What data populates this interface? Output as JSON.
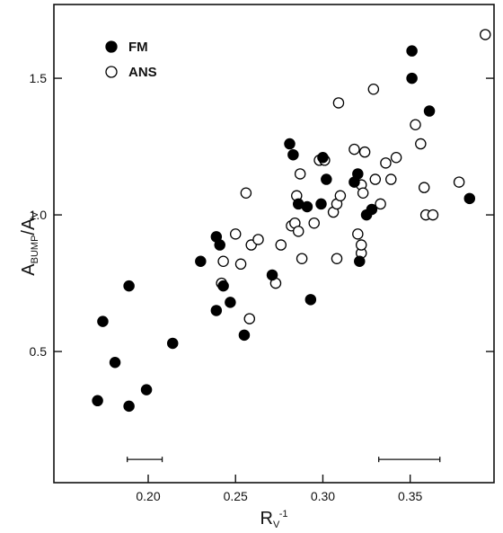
{
  "chart_data": {
    "type": "scatter",
    "title": "",
    "xlabel": {
      "base": "R",
      "sub": "V",
      "sup": "-1"
    },
    "ylabel": {
      "base": "A",
      "sub": "BUMP",
      "rest": "/A",
      "sub2": "V"
    },
    "xlim": [
      0.146,
      0.398
    ],
    "ylim": [
      0.02,
      1.77
    ],
    "xticks": [
      0.2,
      0.25,
      0.3,
      0.35
    ],
    "xtick_labels": [
      "0.20",
      "0.25",
      "0.30",
      "0.35"
    ],
    "yticks": [
      0.5,
      1.0,
      1.5
    ],
    "ytick_labels": [
      "0.5",
      "1.0",
      "1.5"
    ],
    "grid": false,
    "legend_position": "top-left",
    "colors": {
      "filled": "#000000",
      "open_stroke": "#000000",
      "open_fill": "#ffffff"
    },
    "error_bars": [
      {
        "y": 0.105,
        "xmin": 0.188,
        "xmax": 0.208
      },
      {
        "y": 0.105,
        "xmin": 0.332,
        "xmax": 0.367
      }
    ],
    "series": [
      {
        "name": "FM",
        "marker": "filled-circle",
        "points": [
          [
            0.171,
            0.32
          ],
          [
            0.174,
            0.61
          ],
          [
            0.181,
            0.46
          ],
          [
            0.189,
            0.74
          ],
          [
            0.189,
            0.3
          ],
          [
            0.199,
            0.36
          ],
          [
            0.214,
            0.53
          ],
          [
            0.23,
            0.83
          ],
          [
            0.239,
            0.92
          ],
          [
            0.239,
            0.65
          ],
          [
            0.241,
            0.89
          ],
          [
            0.243,
            0.74
          ],
          [
            0.247,
            0.68
          ],
          [
            0.255,
            0.56
          ],
          [
            0.271,
            0.78
          ],
          [
            0.281,
            1.26
          ],
          [
            0.283,
            1.22
          ],
          [
            0.286,
            1.04
          ],
          [
            0.291,
            1.03
          ],
          [
            0.293,
            0.69
          ],
          [
            0.299,
            1.04
          ],
          [
            0.3,
            1.21
          ],
          [
            0.302,
            1.13
          ],
          [
            0.318,
            1.12
          ],
          [
            0.32,
            1.15
          ],
          [
            0.321,
            0.83
          ],
          [
            0.325,
            1.0
          ],
          [
            0.328,
            1.02
          ],
          [
            0.351,
            1.6
          ],
          [
            0.351,
            1.5
          ],
          [
            0.361,
            1.38
          ],
          [
            0.384,
            1.06
          ]
        ]
      },
      {
        "name": "ANS",
        "marker": "open-circle",
        "points": [
          [
            0.242,
            0.75
          ],
          [
            0.243,
            0.83
          ],
          [
            0.25,
            0.93
          ],
          [
            0.253,
            0.82
          ],
          [
            0.256,
            1.08
          ],
          [
            0.258,
            0.62
          ],
          [
            0.259,
            0.89
          ],
          [
            0.263,
            0.91
          ],
          [
            0.273,
            0.75
          ],
          [
            0.276,
            0.89
          ],
          [
            0.282,
            0.96
          ],
          [
            0.284,
            0.97
          ],
          [
            0.285,
            1.07
          ],
          [
            0.286,
            0.94
          ],
          [
            0.287,
            1.15
          ],
          [
            0.288,
            0.84
          ],
          [
            0.295,
            0.97
          ],
          [
            0.298,
            1.2
          ],
          [
            0.301,
            1.2
          ],
          [
            0.306,
            1.01
          ],
          [
            0.308,
            0.84
          ],
          [
            0.308,
            1.04
          ],
          [
            0.309,
            1.41
          ],
          [
            0.31,
            1.07
          ],
          [
            0.318,
            1.24
          ],
          [
            0.32,
            0.93
          ],
          [
            0.322,
            1.11
          ],
          [
            0.322,
            0.86
          ],
          [
            0.322,
            0.89
          ],
          [
            0.323,
            1.08
          ],
          [
            0.324,
            1.23
          ],
          [
            0.329,
            1.46
          ],
          [
            0.33,
            1.13
          ],
          [
            0.333,
            1.04
          ],
          [
            0.336,
            1.19
          ],
          [
            0.339,
            1.13
          ],
          [
            0.342,
            1.21
          ],
          [
            0.353,
            1.33
          ],
          [
            0.356,
            1.26
          ],
          [
            0.358,
            1.1
          ],
          [
            0.359,
            1.0
          ],
          [
            0.363,
            1.0
          ],
          [
            0.378,
            1.12
          ],
          [
            0.393,
            1.66
          ]
        ]
      }
    ]
  }
}
